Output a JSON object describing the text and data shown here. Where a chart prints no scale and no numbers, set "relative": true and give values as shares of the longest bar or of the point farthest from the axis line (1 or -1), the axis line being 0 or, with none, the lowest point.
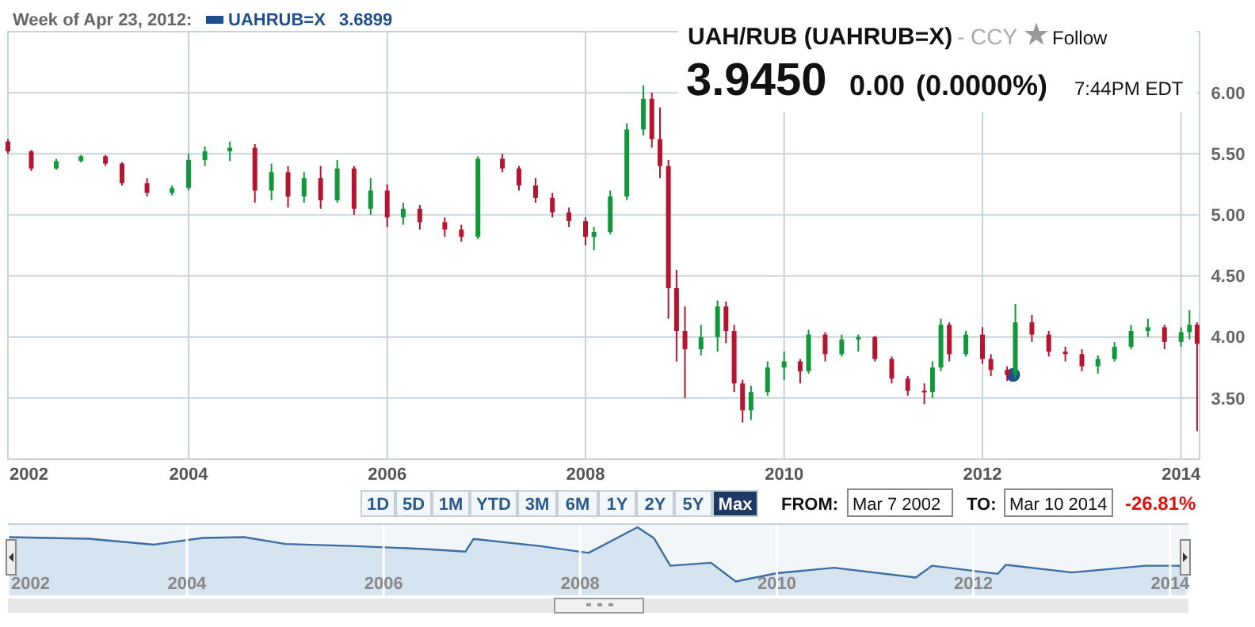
{
  "chart_data": [
    {
      "type": "candlestick",
      "title": "UAH/RUB (UAHRUB=X)",
      "annotations": [
        "Week of Apr 23, 2012:",
        "3.6899",
        "- CCY",
        "Follow",
        "3.9450",
        "0.00",
        "(0.0000%)",
        "7:44PM EDT",
        "1D",
        "5D",
        "1M",
        "YTD",
        "3M",
        "6M",
        "1Y",
        "2Y",
        "5Y",
        "Max",
        "FROM:",
        "Mar 7 2002",
        "TO:",
        "Mar 10 2014",
        "-26.81%"
      ],
      "x": [
        "2002-03-07",
        "2002-06",
        "2002-09",
        "2002-12",
        "2003-03",
        "2003-05",
        "2003-08",
        "2003-11",
        "2004-01",
        "2004-03",
        "2004-06",
        "2004-09",
        "2004-11",
        "2005-01",
        "2005-03",
        "2005-05",
        "2005-07",
        "2005-09",
        "2005-11",
        "2006-01",
        "2006-03",
        "2006-05",
        "2006-08",
        "2006-10",
        "2006-12",
        "2007-03",
        "2007-05",
        "2007-07",
        "2007-09",
        "2007-11",
        "2008-01",
        "2008-02",
        "2008-04",
        "2008-06",
        "2008-08",
        "2008-09",
        "2008-10",
        "2008-11",
        "2008-12",
        "2009-01",
        "2009-03",
        "2009-05",
        "2009-06",
        "2009-07",
        "2009-08",
        "2009-09",
        "2009-11",
        "2010-01",
        "2010-03",
        "2010-04",
        "2010-06",
        "2010-08",
        "2010-10",
        "2010-12",
        "2011-02",
        "2011-04",
        "2011-06",
        "2011-07",
        "2011-08",
        "2011-09",
        "2011-11",
        "2012-01",
        "2012-02",
        "2012-04",
        "2012-05",
        "2012-07",
        "2012-09",
        "2012-11",
        "2013-01",
        "2013-03",
        "2013-05",
        "2013-07",
        "2013-09",
        "2013-11",
        "2014-01",
        "2014-02",
        "2014-03"
      ],
      "ohlc": [
        [
          5.6,
          5.62,
          5.5,
          5.52
        ],
        [
          5.52,
          5.53,
          5.36,
          5.38
        ],
        [
          5.38,
          5.46,
          5.37,
          5.44
        ],
        [
          5.44,
          5.49,
          5.43,
          5.48
        ],
        [
          5.48,
          5.49,
          5.4,
          5.42
        ],
        [
          5.42,
          5.43,
          5.24,
          5.26
        ],
        [
          5.26,
          5.3,
          5.15,
          5.18
        ],
        [
          5.18,
          5.24,
          5.16,
          5.22
        ],
        [
          5.22,
          5.5,
          5.2,
          5.45
        ],
        [
          5.45,
          5.56,
          5.4,
          5.52
        ],
        [
          5.52,
          5.6,
          5.44,
          5.55
        ],
        [
          5.55,
          5.58,
          5.1,
          5.2
        ],
        [
          5.2,
          5.42,
          5.12,
          5.35
        ],
        [
          5.35,
          5.4,
          5.06,
          5.15
        ],
        [
          5.15,
          5.35,
          5.1,
          5.3
        ],
        [
          5.3,
          5.4,
          5.05,
          5.12
        ],
        [
          5.12,
          5.45,
          5.1,
          5.38
        ],
        [
          5.38,
          5.4,
          5.0,
          5.05
        ],
        [
          5.05,
          5.3,
          5.0,
          5.2
        ],
        [
          5.2,
          5.25,
          4.9,
          4.98
        ],
        [
          4.98,
          5.1,
          4.92,
          5.05
        ],
        [
          5.05,
          5.08,
          4.88,
          4.94
        ],
        [
          4.94,
          4.98,
          4.82,
          4.88
        ],
        [
          4.88,
          4.92,
          4.78,
          4.82
        ],
        [
          4.82,
          5.48,
          4.8,
          5.46
        ],
        [
          5.46,
          5.5,
          5.35,
          5.38
        ],
        [
          5.38,
          5.4,
          5.2,
          5.24
        ],
        [
          5.24,
          5.3,
          5.1,
          5.14
        ],
        [
          5.14,
          5.18,
          4.98,
          5.02
        ],
        [
          5.02,
          5.06,
          4.9,
          4.95
        ],
        [
          4.95,
          4.98,
          4.75,
          4.82
        ],
        [
          4.82,
          4.9,
          4.71,
          4.86
        ],
        [
          4.86,
          5.2,
          4.84,
          5.15
        ],
        [
          5.15,
          5.75,
          5.12,
          5.7
        ],
        [
          5.7,
          6.06,
          5.65,
          5.95
        ],
        [
          5.95,
          6.0,
          5.55,
          5.62
        ],
        [
          5.62,
          5.88,
          5.3,
          5.4
        ],
        [
          5.4,
          5.45,
          4.15,
          4.4
        ],
        [
          4.4,
          4.55,
          3.8,
          4.05
        ],
        [
          4.05,
          4.25,
          3.5,
          3.9
        ],
        [
          3.9,
          4.1,
          3.85,
          4.0
        ],
        [
          4.0,
          4.3,
          3.88,
          4.25
        ],
        [
          4.25,
          4.29,
          3.95,
          4.05
        ],
        [
          4.05,
          4.1,
          3.55,
          3.62
        ],
        [
          3.62,
          3.65,
          3.3,
          3.4
        ],
        [
          3.4,
          3.6,
          3.32,
          3.55
        ],
        [
          3.55,
          3.8,
          3.52,
          3.75
        ],
        [
          3.75,
          3.88,
          3.65,
          3.8
        ],
        [
          3.8,
          3.82,
          3.62,
          3.72
        ],
        [
          3.72,
          4.06,
          3.7,
          4.02
        ],
        [
          4.02,
          4.04,
          3.8,
          3.86
        ],
        [
          3.86,
          4.02,
          3.84,
          3.98
        ],
        [
          3.98,
          4.02,
          3.88,
          4.0
        ],
        [
          4.0,
          4.01,
          3.8,
          3.82
        ],
        [
          3.82,
          3.84,
          3.62,
          3.66
        ],
        [
          3.66,
          3.68,
          3.52,
          3.56
        ],
        [
          3.56,
          3.62,
          3.45,
          3.55
        ],
        [
          3.55,
          3.8,
          3.5,
          3.75
        ],
        [
          3.75,
          4.15,
          3.72,
          4.1
        ],
        [
          4.1,
          4.12,
          3.8,
          3.86
        ],
        [
          3.86,
          4.05,
          3.84,
          4.02
        ],
        [
          4.02,
          4.08,
          3.78,
          3.82
        ],
        [
          3.82,
          3.86,
          3.68,
          3.73
        ],
        [
          3.73,
          3.76,
          3.64,
          3.69
        ],
        [
          3.69,
          4.27,
          3.66,
          4.12
        ],
        [
          4.12,
          4.18,
          3.96,
          4.02
        ],
        [
          4.02,
          4.05,
          3.84,
          3.88
        ],
        [
          3.88,
          3.92,
          3.8,
          3.86
        ],
        [
          3.86,
          3.9,
          3.72,
          3.76
        ],
        [
          3.76,
          3.85,
          3.7,
          3.82
        ],
        [
          3.82,
          3.96,
          3.8,
          3.92
        ],
        [
          3.92,
          4.1,
          3.9,
          4.05
        ],
        [
          4.05,
          4.15,
          4.0,
          4.08
        ],
        [
          4.08,
          4.1,
          3.9,
          3.96
        ],
        [
          3.96,
          4.08,
          3.92,
          4.04
        ],
        [
          4.04,
          4.22,
          3.98,
          4.1
        ],
        [
          4.1,
          4.12,
          3.23,
          3.945
        ]
      ],
      "series": [
        {
          "type": "scatter",
          "name": "UAHRUB=X",
          "color": "#1f4e8c",
          "x": [
            "2012-04-23"
          ],
          "values": [
            3.69
          ]
        }
      ],
      "xlim": [
        "2002-03-07",
        "2014-03-10"
      ],
      "xticks": [
        {
          "value": "2002-03-07",
          "label": "2002"
        },
        {
          "value": "2004-01-01",
          "label": "2004"
        },
        {
          "value": "2006-01-01",
          "label": "2006"
        },
        {
          "value": "2008-01-01",
          "label": "2008"
        },
        {
          "value": "2010-01-01",
          "label": "2010"
        },
        {
          "value": "2012-01-01",
          "label": "2012"
        },
        {
          "value": "2014-01-01",
          "label": "2014"
        }
      ],
      "ylim": [
        3.0,
        6.5
      ],
      "yticks": [
        {
          "value": 3.5,
          "label": "3.50"
        },
        {
          "value": 4,
          "label": "4.00"
        },
        {
          "value": 4.5,
          "label": "4.50"
        },
        {
          "value": 5,
          "label": "5.00"
        },
        {
          "value": 5.5,
          "label": "5.50"
        },
        {
          "value": 6,
          "label": "6.00"
        }
      ],
      "grid": true,
      "legend": "top left",
      "marker": "circle"
    },
    {
      "type": "area",
      "relative": true,
      "grid": "x",
      "x": [
        "2002-03-07",
        "2003-01",
        "2003-09",
        "2004-03",
        "2004-08",
        "2005-01",
        "2005-09",
        "2006-06",
        "2006-11",
        "2006-12",
        "2007-08",
        "2008-02",
        "2008-08",
        "2008-10",
        "2008-12",
        "2009-05",
        "2009-08",
        "2010-01",
        "2010-08",
        "2011-06",
        "2011-08",
        "2012-04",
        "2012-05",
        "2013-01",
        "2013-10",
        "2014-02",
        "2014-03"
      ],
      "series": [
        {
          "color": "#3a6ea5",
          "values": [
            0.855,
            0.832,
            0.745,
            0.843,
            0.855,
            0.754,
            0.725,
            0.681,
            0.643,
            0.829,
            0.725,
            0.623,
            1.0,
            0.841,
            0.435,
            0.478,
            0.203,
            0.325,
            0.406,
            0.261,
            0.435,
            0.316,
            0.449,
            0.336,
            0.435,
            0.435,
            0.391
          ]
        }
      ],
      "xlim": [
        "2002-03-07",
        "2014-03-10"
      ],
      "xticks": [
        {
          "value": "2002-03-07",
          "label": "2002"
        },
        {
          "value": "2004-01-01",
          "label": "2004"
        },
        {
          "value": "2006-01-01",
          "label": "2006"
        },
        {
          "value": "2008-01-01",
          "label": "2008"
        },
        {
          "value": "2010-01-01",
          "label": "2010"
        },
        {
          "value": "2012-01-01",
          "label": "2012"
        },
        {
          "value": "2014-01-01",
          "label": "2014"
        }
      ]
    }
  ]
}
